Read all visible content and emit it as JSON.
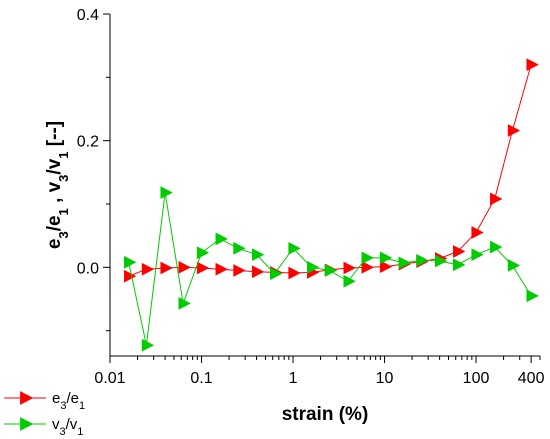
{
  "chart_data": {
    "type": "line",
    "xscale": "log",
    "xlim": [
      0.01,
      500
    ],
    "ylim": [
      -0.14,
      0.4
    ],
    "x_ticks": [
      0.01,
      0.1,
      1,
      10,
      100,
      400
    ],
    "x_tick_labels": [
      "0.01",
      "0.1",
      "1",
      "10",
      "100",
      "400"
    ],
    "y_ticks": [
      0.0,
      0.2,
      0.4
    ],
    "y_tick_labels": [
      "0.0",
      "0.2",
      "0.4"
    ],
    "xlabel": "strain (%)",
    "ylabel": {
      "parts": [
        "e",
        "3",
        "/e",
        "1",
        " , v",
        "3",
        "/v",
        "1",
        " [--]"
      ]
    },
    "grid": false,
    "legend_position": "bottom-left",
    "series": [
      {
        "key": "e3e1",
        "color": "#ff0000",
        "marker": "right-triangle",
        "label_parts": [
          "e",
          "3",
          "/e",
          "1"
        ],
        "x": [
          0.016,
          0.025,
          0.04,
          0.063,
          0.1,
          0.16,
          0.25,
          0.4,
          0.63,
          1.0,
          1.6,
          2.5,
          4.0,
          6.3,
          10,
          16,
          25,
          40,
          63,
          100,
          160,
          250,
          400
        ],
        "y": [
          -0.014,
          -0.003,
          -0.001,
          0.0,
          -0.001,
          -0.003,
          -0.005,
          -0.007,
          -0.008,
          -0.009,
          -0.008,
          -0.004,
          -0.001,
          0.0,
          0.001,
          0.005,
          0.009,
          0.014,
          0.025,
          0.055,
          0.108,
          0.216,
          0.32
        ]
      },
      {
        "key": "v3v1",
        "color": "#00cc00",
        "marker": "right-triangle",
        "label_parts": [
          "v",
          "3",
          "/v",
          "1"
        ],
        "x": [
          0.016,
          0.025,
          0.04,
          0.063,
          0.1,
          0.16,
          0.25,
          0.4,
          0.63,
          1.0,
          1.6,
          2.5,
          4.0,
          6.3,
          10,
          16,
          25,
          40,
          63,
          100,
          160,
          250,
          400
        ],
        "y": [
          0.008,
          -0.123,
          0.118,
          -0.057,
          0.023,
          0.045,
          0.03,
          0.02,
          -0.01,
          0.03,
          0.0,
          -0.005,
          -0.022,
          0.015,
          0.015,
          0.007,
          0.011,
          0.01,
          0.004,
          0.02,
          0.032,
          0.003,
          -0.045
        ]
      }
    ]
  }
}
